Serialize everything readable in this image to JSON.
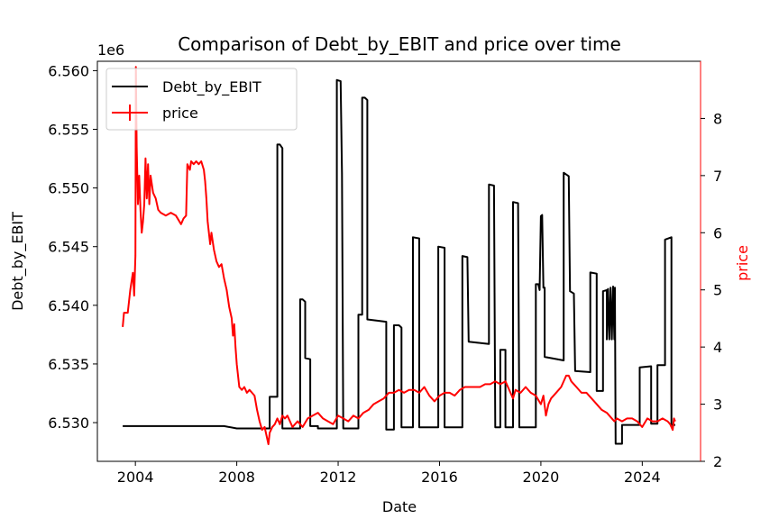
{
  "chart_data": {
    "type": "line",
    "title": "Comparison of Debt_by_EBIT and price over time",
    "xlabel": "Date",
    "ylabel_left": "Debt_by_EBIT",
    "ylabel_right": "price",
    "left_offset_label": "1e6",
    "colors": {
      "left_series": "#000000",
      "right_series": "#ff0000"
    },
    "xlim": [
      2002.5,
      2026.3
    ],
    "ylim_left": [
      6.5267,
      6.5608
    ],
    "ylim_right": [
      2.0,
      9.0
    ],
    "x_ticks": [
      2004,
      2008,
      2012,
      2016,
      2020,
      2024
    ],
    "y_ticks_left": [
      6.53,
      6.535,
      6.54,
      6.545,
      6.55,
      6.555,
      6.56
    ],
    "y_ticks_right": [
      2,
      3,
      4,
      5,
      6,
      7,
      8
    ],
    "legend": {
      "placement": "top-left",
      "entries": [
        "Debt_by_EBIT",
        "price"
      ]
    },
    "grid": false,
    "series": [
      {
        "name": "Debt_by_EBIT",
        "axis": "left",
        "points": [
          [
            2003.5,
            6.5297
          ],
          [
            2007.5,
            6.5297
          ],
          [
            2008.0,
            6.5295
          ],
          [
            2009.3,
            6.5295
          ],
          [
            2009.3,
            6.5322
          ],
          [
            2009.6,
            6.5322
          ],
          [
            2009.6,
            6.5537
          ],
          [
            2009.7,
            6.5537
          ],
          [
            2009.8,
            6.5534
          ],
          [
            2009.8,
            6.5295
          ],
          [
            2010.5,
            6.5295
          ],
          [
            2010.5,
            6.5405
          ],
          [
            2010.6,
            6.5405
          ],
          [
            2010.7,
            6.5403
          ],
          [
            2010.7,
            6.5355
          ],
          [
            2010.9,
            6.5354
          ],
          [
            2010.9,
            6.5297
          ],
          [
            2011.2,
            6.5297
          ],
          [
            2011.2,
            6.5295
          ],
          [
            2011.95,
            6.5295
          ],
          [
            2011.95,
            6.5592
          ],
          [
            2012.1,
            6.5591
          ],
          [
            2012.15,
            6.5512
          ],
          [
            2012.2,
            6.5295
          ],
          [
            2012.8,
            6.5295
          ],
          [
            2012.8,
            6.5392
          ],
          [
            2012.95,
            6.5392
          ],
          [
            2012.95,
            6.5577
          ],
          [
            2013.05,
            6.5577
          ],
          [
            2013.15,
            6.5575
          ],
          [
            2013.15,
            6.5388
          ],
          [
            2013.9,
            6.5386
          ],
          [
            2013.9,
            6.5294
          ],
          [
            2014.2,
            6.5294
          ],
          [
            2014.2,
            6.5383
          ],
          [
            2014.4,
            6.5383
          ],
          [
            2014.5,
            6.5381
          ],
          [
            2014.5,
            6.5296
          ],
          [
            2014.95,
            6.5296
          ],
          [
            2014.95,
            6.5458
          ],
          [
            2015.2,
            6.5457
          ],
          [
            2015.2,
            6.5296
          ],
          [
            2015.95,
            6.5296
          ],
          [
            2015.95,
            6.545
          ],
          [
            2016.2,
            6.5449
          ],
          [
            2016.2,
            6.5296
          ],
          [
            2016.9,
            6.5296
          ],
          [
            2016.9,
            6.5442
          ],
          [
            2017.1,
            6.5441
          ],
          [
            2017.15,
            6.5369
          ],
          [
            2017.95,
            6.5367
          ],
          [
            2017.95,
            6.5503
          ],
          [
            2018.15,
            6.5502
          ],
          [
            2018.2,
            6.5296
          ],
          [
            2018.4,
            6.5296
          ],
          [
            2018.4,
            6.5362
          ],
          [
            2018.6,
            6.5362
          ],
          [
            2018.6,
            6.5296
          ],
          [
            2018.9,
            6.5296
          ],
          [
            2018.9,
            6.5488
          ],
          [
            2019.1,
            6.5487
          ],
          [
            2019.15,
            6.5296
          ],
          [
            2019.8,
            6.5296
          ],
          [
            2019.8,
            6.5418
          ],
          [
            2019.9,
            6.5418
          ],
          [
            2019.95,
            6.5413
          ],
          [
            2020.0,
            6.5476
          ],
          [
            2020.05,
            6.5477
          ],
          [
            2020.1,
            6.5415
          ],
          [
            2020.15,
            6.5415
          ],
          [
            2020.15,
            6.5356
          ],
          [
            2020.9,
            6.5353
          ],
          [
            2020.9,
            6.5513
          ],
          [
            2021.1,
            6.551
          ],
          [
            2021.15,
            6.5412
          ],
          [
            2021.3,
            6.541
          ],
          [
            2021.35,
            6.5344
          ],
          [
            2021.95,
            6.5343
          ],
          [
            2021.95,
            6.5428
          ],
          [
            2022.2,
            6.5427
          ],
          [
            2022.2,
            6.5327
          ],
          [
            2022.45,
            6.5327
          ],
          [
            2022.45,
            6.5412
          ],
          [
            2022.6,
            6.5413
          ],
          [
            2022.6,
            6.5371
          ],
          [
            2022.65,
            6.5414
          ],
          [
            2022.7,
            6.5371
          ],
          [
            2022.75,
            6.5415
          ],
          [
            2022.8,
            6.5371
          ],
          [
            2022.85,
            6.5416
          ],
          [
            2022.9,
            6.5371
          ],
          [
            2022.92,
            6.5415
          ],
          [
            2022.95,
            6.5282
          ],
          [
            2023.2,
            6.5282
          ],
          [
            2023.2,
            6.5298
          ],
          [
            2023.9,
            6.5298
          ],
          [
            2023.9,
            6.5347
          ],
          [
            2024.35,
            6.5348
          ],
          [
            2024.35,
            6.5299
          ],
          [
            2024.6,
            6.5299
          ],
          [
            2024.6,
            6.5349
          ],
          [
            2024.9,
            6.5349
          ],
          [
            2024.9,
            6.5456
          ],
          [
            2025.15,
            6.5458
          ],
          [
            2025.15,
            6.5298
          ],
          [
            2025.3,
            6.5298
          ]
        ]
      },
      {
        "name": "price",
        "axis": "right",
        "points": [
          [
            2003.5,
            4.35
          ],
          [
            2003.55,
            4.6
          ],
          [
            2003.7,
            4.6
          ],
          [
            2003.8,
            5.0
          ],
          [
            2003.9,
            5.3
          ],
          [
            2003.95,
            4.9
          ],
          [
            2004.0,
            5.6
          ],
          [
            2004.02,
            8.9
          ],
          [
            2004.05,
            7.5
          ],
          [
            2004.1,
            6.5
          ],
          [
            2004.15,
            7.0
          ],
          [
            2004.2,
            6.4
          ],
          [
            2004.25,
            6.0
          ],
          [
            2004.3,
            6.2
          ],
          [
            2004.35,
            6.5
          ],
          [
            2004.4,
            7.3
          ],
          [
            2004.45,
            6.6
          ],
          [
            2004.5,
            7.2
          ],
          [
            2004.55,
            6.5
          ],
          [
            2004.6,
            7.0
          ],
          [
            2004.7,
            6.7
          ],
          [
            2004.8,
            6.6
          ],
          [
            2004.9,
            6.4
          ],
          [
            2005.0,
            6.35
          ],
          [
            2005.2,
            6.3
          ],
          [
            2005.4,
            6.35
          ],
          [
            2005.6,
            6.3
          ],
          [
            2005.8,
            6.15
          ],
          [
            2005.9,
            6.25
          ],
          [
            2006.0,
            6.3
          ],
          [
            2006.05,
            7.2
          ],
          [
            2006.15,
            7.1
          ],
          [
            2006.2,
            7.25
          ],
          [
            2006.3,
            7.2
          ],
          [
            2006.4,
            7.25
          ],
          [
            2006.5,
            7.2
          ],
          [
            2006.6,
            7.25
          ],
          [
            2006.7,
            7.1
          ],
          [
            2006.75,
            6.9
          ],
          [
            2006.8,
            6.6
          ],
          [
            2006.85,
            6.2
          ],
          [
            2006.9,
            6.0
          ],
          [
            2006.95,
            5.8
          ],
          [
            2007.0,
            6.0
          ],
          [
            2007.1,
            5.7
          ],
          [
            2007.2,
            5.5
          ],
          [
            2007.3,
            5.4
          ],
          [
            2007.4,
            5.45
          ],
          [
            2007.5,
            5.2
          ],
          [
            2007.6,
            5.0
          ],
          [
            2007.7,
            4.7
          ],
          [
            2007.8,
            4.5
          ],
          [
            2007.85,
            4.2
          ],
          [
            2007.9,
            4.4
          ],
          [
            2007.95,
            4.0
          ],
          [
            2008.0,
            3.7
          ],
          [
            2008.1,
            3.3
          ],
          [
            2008.2,
            3.25
          ],
          [
            2008.3,
            3.3
          ],
          [
            2008.4,
            3.2
          ],
          [
            2008.5,
            3.25
          ],
          [
            2008.6,
            3.2
          ],
          [
            2008.7,
            3.15
          ],
          [
            2008.8,
            2.9
          ],
          [
            2008.9,
            2.7
          ],
          [
            2009.0,
            2.55
          ],
          [
            2009.1,
            2.6
          ],
          [
            2009.2,
            2.4
          ],
          [
            2009.25,
            2.3
          ],
          [
            2009.3,
            2.5
          ],
          [
            2009.4,
            2.6
          ],
          [
            2009.5,
            2.65
          ],
          [
            2009.6,
            2.75
          ],
          [
            2009.7,
            2.65
          ],
          [
            2009.8,
            2.8
          ],
          [
            2009.9,
            2.75
          ],
          [
            2010.0,
            2.8
          ],
          [
            2010.2,
            2.6
          ],
          [
            2010.4,
            2.7
          ],
          [
            2010.6,
            2.6
          ],
          [
            2010.8,
            2.75
          ],
          [
            2011.0,
            2.8
          ],
          [
            2011.2,
            2.85
          ],
          [
            2011.4,
            2.75
          ],
          [
            2011.6,
            2.7
          ],
          [
            2011.8,
            2.65
          ],
          [
            2012.0,
            2.8
          ],
          [
            2012.2,
            2.75
          ],
          [
            2012.4,
            2.7
          ],
          [
            2012.6,
            2.8
          ],
          [
            2012.8,
            2.75
          ],
          [
            2013.0,
            2.85
          ],
          [
            2013.2,
            2.9
          ],
          [
            2013.4,
            3.0
          ],
          [
            2013.6,
            3.05
          ],
          [
            2013.8,
            3.1
          ],
          [
            2014.0,
            3.2
          ],
          [
            2014.2,
            3.2
          ],
          [
            2014.4,
            3.25
          ],
          [
            2014.6,
            3.2
          ],
          [
            2014.8,
            3.25
          ],
          [
            2015.0,
            3.25
          ],
          [
            2015.2,
            3.2
          ],
          [
            2015.4,
            3.3
          ],
          [
            2015.6,
            3.15
          ],
          [
            2015.8,
            3.05
          ],
          [
            2016.0,
            3.15
          ],
          [
            2016.2,
            3.2
          ],
          [
            2016.4,
            3.2
          ],
          [
            2016.6,
            3.15
          ],
          [
            2016.8,
            3.25
          ],
          [
            2017.0,
            3.3
          ],
          [
            2017.2,
            3.3
          ],
          [
            2017.4,
            3.3
          ],
          [
            2017.6,
            3.3
          ],
          [
            2017.8,
            3.35
          ],
          [
            2018.0,
            3.35
          ],
          [
            2018.2,
            3.4
          ],
          [
            2018.4,
            3.35
          ],
          [
            2018.6,
            3.4
          ],
          [
            2018.8,
            3.2
          ],
          [
            2018.9,
            3.1
          ],
          [
            2019.0,
            3.25
          ],
          [
            2019.2,
            3.2
          ],
          [
            2019.4,
            3.3
          ],
          [
            2019.6,
            3.2
          ],
          [
            2019.8,
            3.15
          ],
          [
            2020.0,
            3.0
          ],
          [
            2020.1,
            3.15
          ],
          [
            2020.2,
            2.8
          ],
          [
            2020.3,
            3.0
          ],
          [
            2020.4,
            3.1
          ],
          [
            2020.6,
            3.2
          ],
          [
            2020.8,
            3.3
          ],
          [
            2021.0,
            3.5
          ],
          [
            2021.1,
            3.5
          ],
          [
            2021.2,
            3.4
          ],
          [
            2021.4,
            3.3
          ],
          [
            2021.6,
            3.2
          ],
          [
            2021.8,
            3.2
          ],
          [
            2022.0,
            3.1
          ],
          [
            2022.2,
            3.0
          ],
          [
            2022.4,
            2.9
          ],
          [
            2022.6,
            2.85
          ],
          [
            2022.8,
            2.75
          ],
          [
            2022.9,
            2.7
          ],
          [
            2023.0,
            2.75
          ],
          [
            2023.2,
            2.7
          ],
          [
            2023.4,
            2.75
          ],
          [
            2023.6,
            2.75
          ],
          [
            2023.8,
            2.7
          ],
          [
            2024.0,
            2.6
          ],
          [
            2024.2,
            2.75
          ],
          [
            2024.4,
            2.7
          ],
          [
            2024.6,
            2.7
          ],
          [
            2024.8,
            2.75
          ],
          [
            2025.0,
            2.7
          ],
          [
            2025.1,
            2.65
          ],
          [
            2025.2,
            2.55
          ],
          [
            2025.25,
            2.75
          ],
          [
            2025.3,
            2.7
          ]
        ]
      }
    ]
  }
}
